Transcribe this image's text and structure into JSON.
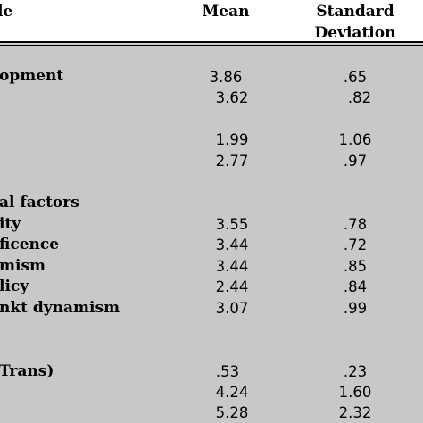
{
  "header": {
    "variable": "le",
    "mean": "Mean",
    "sd_line1": "Standard",
    "sd_line2": "Deviation"
  },
  "rows": [
    {
      "label": "opment",
      "mean": "3.86",
      "sd": ".65"
    },
    {
      "label": "",
      "mean": "3.62",
      "sd": ".82"
    },
    {
      "label": "",
      "mean": "1.99",
      "sd": "1.06"
    },
    {
      "label": "",
      "mean": "2.77",
      "sd": ".97"
    },
    {
      "label": "al factors",
      "mean": "",
      "sd": ""
    },
    {
      "label": "ity",
      "mean": "3.55",
      "sd": ".78"
    },
    {
      "label": "ficence",
      "mean": "3.44",
      "sd": ".72"
    },
    {
      "label": "mism",
      "mean": "3.44",
      "sd": ".85"
    },
    {
      "label": "licy",
      "mean": "2.44",
      "sd": ".84"
    },
    {
      "label": "nkt dynamism",
      "mean": "3.07",
      "sd": ".99"
    },
    {
      "label": "Trans)",
      "mean": ".53",
      "sd": ".23"
    },
    {
      "label": "",
      "mean": "4.24",
      "sd": "1.60"
    },
    {
      "label": "",
      "mean": "5.28",
      "sd": "2.32"
    }
  ]
}
